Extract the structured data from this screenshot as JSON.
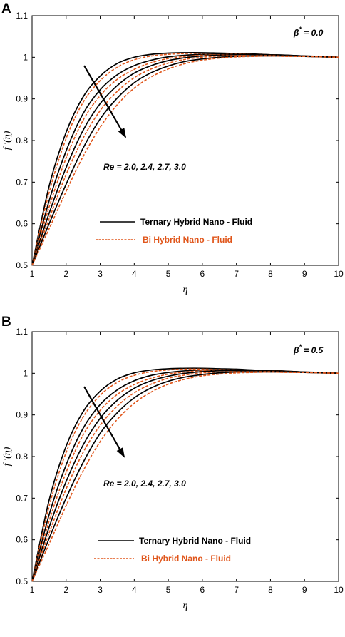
{
  "colors": {
    "ternary": "#000000",
    "bi": "#e0561b",
    "axis": "#000000"
  },
  "chart_data": [
    {
      "type": "line",
      "panel": "A",
      "title": "",
      "xlabel": "η",
      "ylabel": "f ′(η)",
      "xlim": [
        1,
        10
      ],
      "ylim": [
        0.5,
        1.1
      ],
      "xticks": [
        "1",
        "2",
        "3",
        "4",
        "5",
        "6",
        "7",
        "8",
        "9",
        "10"
      ],
      "yticks": [
        "0.5",
        "0.6",
        "0.7",
        "0.8",
        "0.9",
        "1",
        "1.1"
      ],
      "annotation_param": "β* = 0.0",
      "annotation_re": "Re = 2.0, 2.4, 2.7, 3.0",
      "legend": [
        "Ternary Hybrid Nano - Fluid",
        "Bi Hybrid Nano - Fluid"
      ],
      "legend_position": "lower-center",
      "x": [
        1,
        1.5,
        2,
        2.5,
        3,
        3.5,
        4,
        4.5,
        5,
        5.5,
        6,
        6.5,
        7,
        7.5,
        8,
        8.5,
        9,
        9.5,
        10
      ],
      "series": [
        {
          "name": "Ternary Hybrid Nano - Fluid",
          "re": 2.0,
          "values": [
            0.5,
            0.69,
            0.82,
            0.905,
            0.955,
            0.985,
            1.0,
            1.007,
            1.01,
            1.011,
            1.011,
            1.01,
            1.009,
            1.008,
            1.006,
            1.005,
            1.003,
            1.002,
            1.0
          ]
        },
        {
          "name": "Bi Hybrid Nano - Fluid",
          "re": 2.0,
          "values": [
            0.5,
            0.675,
            0.805,
            0.892,
            0.944,
            0.976,
            0.994,
            1.003,
            1.007,
            1.009,
            1.009,
            1.009,
            1.008,
            1.007,
            1.006,
            1.004,
            1.003,
            1.002,
            1.0
          ]
        },
        {
          "name": "Ternary Hybrid Nano - Fluid",
          "re": 2.4,
          "values": [
            0.5,
            0.655,
            0.775,
            0.865,
            0.922,
            0.958,
            0.98,
            0.993,
            1.001,
            1.005,
            1.007,
            1.008,
            1.008,
            1.007,
            1.006,
            1.005,
            1.003,
            1.002,
            1.0
          ]
        },
        {
          "name": "Bi Hybrid Nano - Fluid",
          "re": 2.4,
          "values": [
            0.5,
            0.64,
            0.758,
            0.849,
            0.908,
            0.947,
            0.971,
            0.987,
            0.997,
            1.002,
            1.005,
            1.006,
            1.007,
            1.006,
            1.005,
            1.004,
            1.003,
            1.002,
            1.0
          ]
        },
        {
          "name": "Ternary Hybrid Nano - Fluid",
          "re": 2.7,
          "values": [
            0.5,
            0.625,
            0.735,
            0.825,
            0.889,
            0.932,
            0.962,
            0.98,
            0.992,
            0.999,
            1.003,
            1.005,
            1.006,
            1.006,
            1.005,
            1.004,
            1.003,
            1.002,
            1.0
          ]
        },
        {
          "name": "Bi Hybrid Nano - Fluid",
          "re": 2.7,
          "values": [
            0.5,
            0.612,
            0.718,
            0.806,
            0.872,
            0.918,
            0.951,
            0.972,
            0.986,
            0.995,
            1.0,
            1.003,
            1.004,
            1.004,
            1.004,
            1.003,
            1.002,
            1.001,
            1.0
          ]
        },
        {
          "name": "Ternary Hybrid Nano - Fluid",
          "re": 3.0,
          "values": [
            0.5,
            0.6,
            0.695,
            0.782,
            0.852,
            0.902,
            0.939,
            0.963,
            0.979,
            0.99,
            0.996,
            1.0,
            1.002,
            1.003,
            1.003,
            1.003,
            1.002,
            1.001,
            1.0
          ]
        },
        {
          "name": "Bi Hybrid Nano - Fluid",
          "re": 3.0,
          "values": [
            0.5,
            0.588,
            0.678,
            0.762,
            0.832,
            0.886,
            0.926,
            0.953,
            0.972,
            0.985,
            0.993,
            0.998,
            1.001,
            1.002,
            1.003,
            1.002,
            1.002,
            1.001,
            1.0
          ]
        }
      ]
    },
    {
      "type": "line",
      "panel": "B",
      "title": "",
      "xlabel": "η",
      "ylabel": "f ′(η)",
      "xlim": [
        1,
        10
      ],
      "ylim": [
        0.5,
        1.1
      ],
      "xticks": [
        "1",
        "2",
        "3",
        "4",
        "5",
        "6",
        "7",
        "8",
        "9",
        "10"
      ],
      "yticks": [
        "0.5",
        "0.6",
        "0.7",
        "0.8",
        "0.9",
        "1",
        "1.1"
      ],
      "annotation_param": "β* = 0.5",
      "annotation_re": "Re = 2.0, 2.4, 2.7, 3.0",
      "legend": [
        "Ternary Hybrid Nano - Fluid",
        "Bi Hybrid Nano - Fluid"
      ],
      "legend_position": "lower-center",
      "x": [
        1,
        1.5,
        2,
        2.5,
        3,
        3.5,
        4,
        4.5,
        5,
        5.5,
        6,
        6.5,
        7,
        7.5,
        8,
        8.5,
        9,
        9.5,
        10
      ],
      "series": [
        {
          "name": "Ternary Hybrid Nano - Fluid",
          "re": 2.0,
          "values": [
            0.5,
            0.695,
            0.825,
            0.908,
            0.957,
            0.986,
            1.001,
            1.008,
            1.011,
            1.012,
            1.012,
            1.011,
            1.01,
            1.008,
            1.007,
            1.005,
            1.003,
            1.002,
            1.0
          ]
        },
        {
          "name": "Bi Hybrid Nano - Fluid",
          "re": 2.0,
          "values": [
            0.5,
            0.68,
            0.81,
            0.895,
            0.947,
            0.978,
            0.995,
            1.004,
            1.008,
            1.01,
            1.01,
            1.009,
            1.008,
            1.007,
            1.006,
            1.005,
            1.003,
            1.002,
            1.0
          ]
        },
        {
          "name": "Ternary Hybrid Nano - Fluid",
          "re": 2.4,
          "values": [
            0.5,
            0.66,
            0.78,
            0.868,
            0.925,
            0.96,
            0.982,
            0.995,
            1.002,
            1.006,
            1.008,
            1.008,
            1.008,
            1.007,
            1.006,
            1.005,
            1.003,
            1.002,
            1.0
          ]
        },
        {
          "name": "Bi Hybrid Nano - Fluid",
          "re": 2.4,
          "values": [
            0.5,
            0.645,
            0.762,
            0.852,
            0.911,
            0.949,
            0.973,
            0.988,
            0.998,
            1.003,
            1.006,
            1.007,
            1.007,
            1.006,
            1.005,
            1.004,
            1.003,
            1.002,
            1.0
          ]
        },
        {
          "name": "Ternary Hybrid Nano - Fluid",
          "re": 2.7,
          "values": [
            0.5,
            0.63,
            0.74,
            0.828,
            0.892,
            0.935,
            0.964,
            0.982,
            0.993,
            1.0,
            1.004,
            1.006,
            1.006,
            1.006,
            1.005,
            1.004,
            1.003,
            1.002,
            1.0
          ]
        },
        {
          "name": "Bi Hybrid Nano - Fluid",
          "re": 2.7,
          "values": [
            0.5,
            0.616,
            0.722,
            0.81,
            0.875,
            0.921,
            0.953,
            0.974,
            0.988,
            0.996,
            1.001,
            1.003,
            1.004,
            1.004,
            1.004,
            1.003,
            1.002,
            1.001,
            1.0
          ]
        },
        {
          "name": "Ternary Hybrid Nano - Fluid",
          "re": 3.0,
          "values": [
            0.5,
            0.603,
            0.7,
            0.786,
            0.856,
            0.905,
            0.941,
            0.965,
            0.981,
            0.991,
            0.997,
            1.001,
            1.003,
            1.003,
            1.003,
            1.003,
            1.002,
            1.001,
            1.0
          ]
        },
        {
          "name": "Bi Hybrid Nano - Fluid",
          "re": 3.0,
          "values": [
            0.5,
            0.59,
            0.682,
            0.766,
            0.836,
            0.889,
            0.928,
            0.955,
            0.974,
            0.986,
            0.994,
            0.998,
            1.001,
            1.002,
            1.003,
            1.002,
            1.002,
            1.001,
            1.0
          ]
        }
      ]
    }
  ]
}
